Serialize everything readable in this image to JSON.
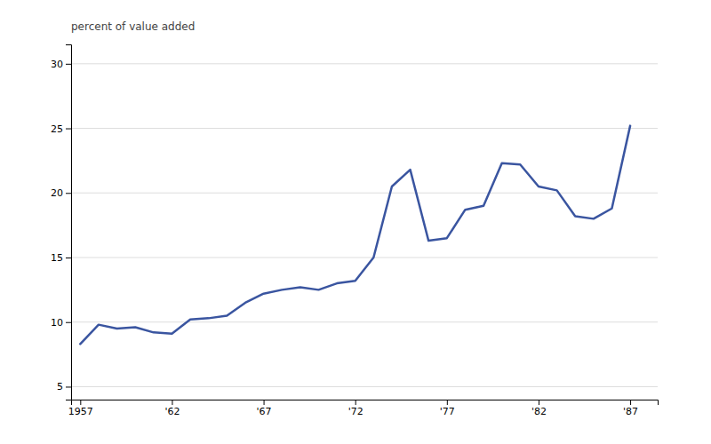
{
  "chart_data": {
    "type": "line",
    "ylabel": "percent of value added",
    "x": [
      1957,
      1958,
      1959,
      1960,
      1961,
      1962,
      1963,
      1964,
      1965,
      1966,
      1967,
      1968,
      1969,
      1970,
      1971,
      1972,
      1973,
      1974,
      1975,
      1976,
      1977,
      1978,
      1979,
      1980,
      1981,
      1982,
      1983,
      1984,
      1985,
      1986,
      1987
    ],
    "y": [
      8.3,
      9.8,
      9.5,
      9.6,
      9.2,
      9.1,
      10.2,
      10.3,
      10.5,
      11.5,
      12.2,
      12.5,
      12.7,
      12.5,
      13.0,
      13.2,
      15.0,
      20.5,
      21.8,
      16.3,
      16.5,
      18.7,
      19.0,
      22.3,
      22.2,
      20.5,
      20.2,
      18.2,
      18.0,
      18.8,
      25.2
    ],
    "color": "#3A55A0",
    "xlim": [
      1956.5,
      1988.5
    ],
    "xticks": [
      1957,
      {
        "value": 1962,
        "label": "'62"
      },
      {
        "value": 1967,
        "label": "'67"
      },
      {
        "value": 1972,
        "label": "'72"
      },
      {
        "value": 1977,
        "label": "'77"
      },
      {
        "value": 1982,
        "label": "'82"
      },
      {
        "value": 1987,
        "label": "'87"
      }
    ],
    "ylim": [
      4,
      31.5
    ],
    "yticks": [
      5,
      10,
      15,
      20,
      25,
      30
    ],
    "grid": true
  }
}
